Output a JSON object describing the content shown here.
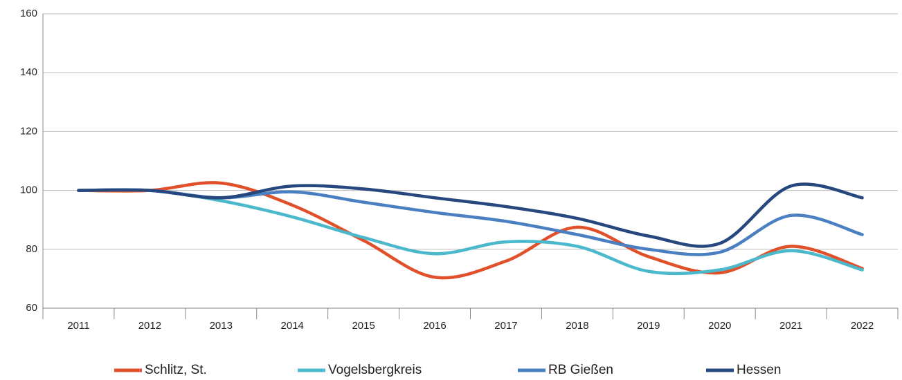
{
  "chart_data": {
    "type": "line",
    "categories": [
      "2011",
      "2012",
      "2013",
      "2014",
      "2015",
      "2016",
      "2017",
      "2018",
      "2019",
      "2020",
      "2021",
      "2022"
    ],
    "series": [
      {
        "name": "Schlitz, St.",
        "color": "#e0502a",
        "values": [
          100,
          100,
          102.5,
          95,
          83,
          70.5,
          76,
          87.5,
          77.5,
          72,
          81,
          73.5
        ]
      },
      {
        "name": "Vogelsbergkreis",
        "color": "#4bb8cc",
        "values": [
          100,
          100,
          96.5,
          91,
          84,
          78.5,
          82.5,
          81,
          72.5,
          73,
          79.5,
          73
        ]
      },
      {
        "name": "RB Gießen",
        "color": "#4a7fc1",
        "values": [
          100,
          100,
          97.5,
          99.5,
          96,
          92.5,
          89.5,
          85,
          80,
          79,
          91.5,
          85
        ]
      },
      {
        "name": "Hessen",
        "color": "#27477f",
        "values": [
          100,
          100,
          97.5,
          101.5,
          100.5,
          97.5,
          94.5,
          90.5,
          84.5,
          82,
          101.5,
          97.5
        ]
      }
    ],
    "ylim": [
      60,
      160
    ],
    "yticks": [
      60,
      80,
      100,
      120,
      140,
      160
    ],
    "grid": true,
    "legend": "bottom"
  }
}
